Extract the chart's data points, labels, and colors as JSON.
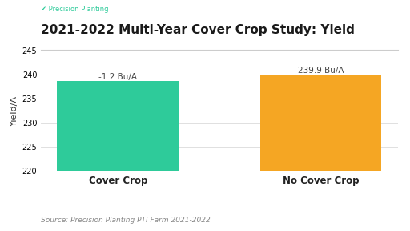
{
  "title": "2021-2022 Multi-Year Cover Crop Study: Yield",
  "logo_text": "✔ Precision Planting",
  "categories": [
    "Cover Crop",
    "No Cover Crop"
  ],
  "values": [
    238.7,
    239.9
  ],
  "bar_colors": [
    "#2ecb9a",
    "#f5a623"
  ],
  "bar_labels": [
    "-1.2 Bu/A",
    "239.9 Bu/A"
  ],
  "ylabel": "Yield/A",
  "ylim": [
    220,
    245
  ],
  "yticks": [
    220,
    225,
    230,
    235,
    240,
    245
  ],
  "source_text": "Source: Precision Planting PTI Farm 2021-2022",
  "bg_color": "#ffffff",
  "grid_color": "#e0e0e0",
  "title_fontsize": 11,
  "label_fontsize": 7.5,
  "tick_fontsize": 7,
  "ylabel_fontsize": 8,
  "source_fontsize": 6.5,
  "bar_width": 0.6,
  "logo_fontsize": 6,
  "logo_color": "#2ecb9a"
}
